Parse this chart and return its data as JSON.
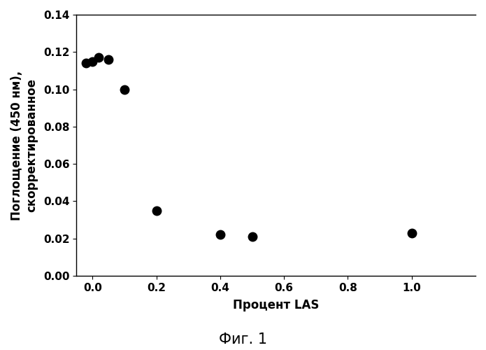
{
  "x": [
    -0.02,
    0.0,
    0.02,
    0.05,
    0.1,
    0.2,
    0.4,
    0.5,
    1.0
  ],
  "y": [
    0.114,
    0.115,
    0.117,
    0.116,
    0.1,
    0.035,
    0.022,
    0.021,
    0.023
  ],
  "xlim": [
    -0.05,
    1.2
  ],
  "ylim": [
    0.0,
    0.14
  ],
  "xticks": [
    0.0,
    0.2,
    0.4,
    0.6,
    0.8,
    1.0
  ],
  "yticks": [
    0.0,
    0.02,
    0.04,
    0.06,
    0.08,
    0.1,
    0.12,
    0.14
  ],
  "xlabel": "Процент LAS",
  "ylabel": "Поглощение (450 нм),\nскорректированное",
  "caption": "Фиг. 1",
  "marker_color": "#000000",
  "marker_size": 9,
  "background_color": "#ffffff",
  "tick_fontsize": 11,
  "label_fontsize": 12,
  "caption_fontsize": 15
}
